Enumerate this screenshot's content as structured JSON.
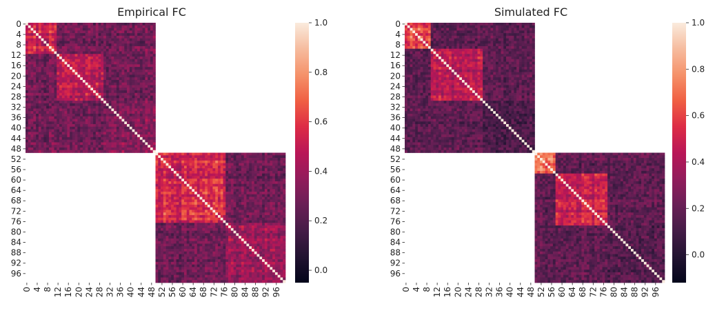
{
  "chart_data": [
    {
      "type": "heatmap",
      "title": "Empirical FC",
      "n": 100,
      "blocks": [
        [
          0,
          50
        ],
        [
          50,
          100
        ]
      ],
      "off_block_masked": true,
      "diagonal_value": 1.0,
      "row_tick_labels": [
        "0",
        "4",
        "8",
        "12",
        "16",
        "20",
        "24",
        "28",
        "32",
        "36",
        "40",
        "44",
        "48",
        "52",
        "56",
        "60",
        "64",
        "68",
        "72",
        "76",
        "80",
        "84",
        "88",
        "92",
        "96"
      ],
      "col_tick_labels": [
        "0",
        "4",
        "8",
        "12",
        "16",
        "20",
        "24",
        "28",
        "32",
        "36",
        "40",
        "44",
        "48",
        "52",
        "56",
        "60",
        "64",
        "68",
        "72",
        "76",
        "80",
        "84",
        "88",
        "92",
        "96"
      ],
      "colorbar": {
        "range": [
          -0.05,
          1.0
        ],
        "ticks": [
          -0.0,
          0.2,
          0.4,
          0.6,
          0.8,
          1.0
        ],
        "tick_labels": [
          "0.0",
          "0.2",
          "0.4",
          "0.6",
          "0.8",
          "1.0"
        ]
      },
      "subregions": [
        {
          "range": [
            0,
            12
          ],
          "mean": 0.52
        },
        {
          "range": [
            12,
            30
          ],
          "mean": 0.48
        },
        {
          "range": [
            30,
            50
          ],
          "mean": 0.33
        },
        {
          "range": [
            50,
            77
          ],
          "mean": 0.55
        },
        {
          "range": [
            77,
            100
          ],
          "mean": 0.4
        }
      ],
      "between_subregion_mean": 0.28
    },
    {
      "type": "heatmap",
      "title": "Simulated FC",
      "n": 100,
      "blocks": [
        [
          0,
          50
        ],
        [
          50,
          100
        ]
      ],
      "off_block_masked": true,
      "diagonal_value": 1.0,
      "row_tick_labels": [
        "0",
        "4",
        "8",
        "12",
        "16",
        "20",
        "24",
        "28",
        "32",
        "36",
        "40",
        "44",
        "48",
        "52",
        "56",
        "60",
        "64",
        "68",
        "72",
        "76",
        "80",
        "84",
        "88",
        "92",
        "96"
      ],
      "col_tick_labels": [
        "0",
        "4",
        "8",
        "12",
        "16",
        "20",
        "24",
        "28",
        "32",
        "36",
        "40",
        "44",
        "48",
        "52",
        "56",
        "60",
        "64",
        "68",
        "72",
        "76",
        "80",
        "84",
        "88",
        "92",
        "96"
      ],
      "colorbar": {
        "range": [
          -0.12,
          1.0
        ],
        "ticks": [
          0.0,
          0.2,
          0.4,
          0.6,
          0.8,
          1.0
        ],
        "tick_labels": [
          "0.0",
          "0.2",
          "0.4",
          "0.6",
          "0.8",
          "1.0"
        ]
      },
      "subregions": [
        {
          "range": [
            0,
            10
          ],
          "mean": 0.62
        },
        {
          "range": [
            10,
            30
          ],
          "mean": 0.45
        },
        {
          "range": [
            30,
            50
          ],
          "mean": 0.12
        },
        {
          "range": [
            50,
            58
          ],
          "mean": 0.72
        },
        {
          "range": [
            58,
            78
          ],
          "mean": 0.48
        },
        {
          "range": [
            78,
            100
          ],
          "mean": 0.15
        }
      ],
      "between_subregion_mean": 0.18
    }
  ]
}
